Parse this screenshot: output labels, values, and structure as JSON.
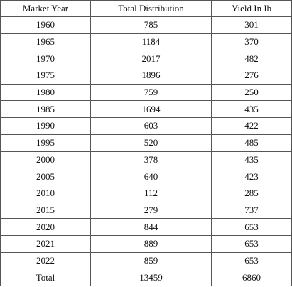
{
  "table": {
    "columns": [
      "Market Year",
      "Total Distribution",
      "Yield In Ib"
    ],
    "rows": [
      [
        "1960",
        785,
        301
      ],
      [
        "1965",
        1184,
        370
      ],
      [
        "1970",
        2017,
        482
      ],
      [
        "1975",
        1896,
        276
      ],
      [
        "1980",
        759,
        250
      ],
      [
        "1985",
        1694,
        435
      ],
      [
        "1990",
        603,
        422
      ],
      [
        "1995",
        520,
        485
      ],
      [
        "2000",
        378,
        435
      ],
      [
        "2005",
        640,
        423
      ],
      [
        "2010",
        112,
        285
      ],
      [
        "2015",
        279,
        737
      ],
      [
        "2020",
        844,
        653
      ],
      [
        "2021",
        889,
        653
      ],
      [
        "2022",
        859,
        653
      ],
      [
        "Total",
        13459,
        6860
      ]
    ]
  }
}
